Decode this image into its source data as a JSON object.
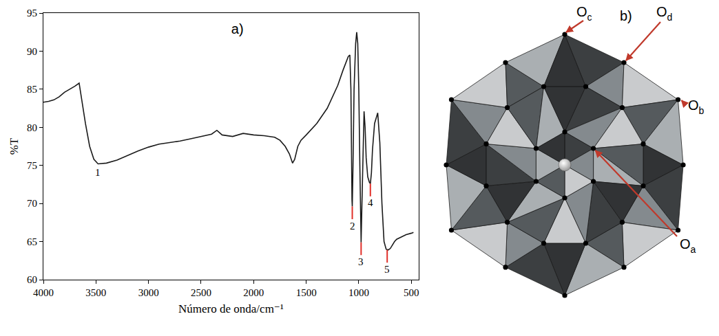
{
  "chart_data": {
    "type": "line",
    "title": "a)",
    "x_label": "Número de onda/cm⁻¹",
    "y_label": "%T",
    "x": [
      4000,
      3950,
      3900,
      3850,
      3800,
      3750,
      3700,
      3660,
      3640,
      3600,
      3560,
      3520,
      3480,
      3400,
      3300,
      3200,
      3100,
      3000,
      2900,
      2800,
      2700,
      2600,
      2500,
      2400,
      2350,
      2300,
      2200,
      2150,
      2100,
      2000,
      1900,
      1800,
      1750,
      1700,
      1660,
      1630,
      1610,
      1580,
      1550,
      1500,
      1400,
      1300,
      1200,
      1150,
      1100,
      1085,
      1075,
      1065,
      1062,
      1055,
      1045,
      1030,
      1020,
      1010,
      1000,
      990,
      982,
      978,
      970,
      960,
      950,
      940,
      930,
      915,
      900,
      890,
      880,
      870,
      850,
      820,
      800,
      780,
      760,
      740,
      720,
      700,
      680,
      660,
      640,
      600,
      550,
      500,
      480
    ],
    "values": [
      83.3,
      83.4,
      83.6,
      84.0,
      84.6,
      85.0,
      85.4,
      85.8,
      84.0,
      80.5,
      77.5,
      75.8,
      75.2,
      75.3,
      75.7,
      76.3,
      76.9,
      77.4,
      77.8,
      78.0,
      78.2,
      78.5,
      78.8,
      79.1,
      79.6,
      79.0,
      78.8,
      79.0,
      79.2,
      79.0,
      78.9,
      78.7,
      78.3,
      77.5,
      76.5,
      75.3,
      75.8,
      77.5,
      78.3,
      79.0,
      80.5,
      82.5,
      85.5,
      87.5,
      89.3,
      89.5,
      85.0,
      70.5,
      69.6,
      75.0,
      85.0,
      91.0,
      92.5,
      91.0,
      85.0,
      75.0,
      65.0,
      64.9,
      70.0,
      78.0,
      82.1,
      80.0,
      76.0,
      73.5,
      72.8,
      72.6,
      74.0,
      77.0,
      80.5,
      81.9,
      78.0,
      70.0,
      65.0,
      64.0,
      63.9,
      64.1,
      64.6,
      65.0,
      65.3,
      65.6,
      65.9,
      66.1,
      66.2
    ],
    "color": "#1a1a1a",
    "xlim": [
      4000,
      430
    ],
    "xticks": [
      4000,
      3500,
      3000,
      2500,
      2000,
      1500,
      1000,
      500
    ],
    "ylim": [
      60,
      95
    ],
    "yticks": [
      60,
      65,
      70,
      75,
      80,
      85,
      90,
      95
    ],
    "grid": false,
    "annotations": [
      {
        "text": "1",
        "x": 3480,
        "y": 75.2
      },
      {
        "text": "2",
        "x": 1062,
        "y": 69.6,
        "color": "#e0302a"
      },
      {
        "text": "3",
        "x": 978,
        "y": 64.9,
        "color": "#e0302a"
      },
      {
        "text": "4",
        "x": 890,
        "y": 72.6,
        "color": "#e0302a"
      },
      {
        "text": "5",
        "x": 730,
        "y": 63.9,
        "color": "#e0302a"
      }
    ]
  },
  "diagram": {
    "title": "b)",
    "labels": [
      {
        "text": "O",
        "subscript": "c"
      },
      {
        "text": "O",
        "subscript": "d"
      },
      {
        "text": "O",
        "subscript": "b"
      },
      {
        "text": "O",
        "subscript": "a"
      }
    ]
  }
}
